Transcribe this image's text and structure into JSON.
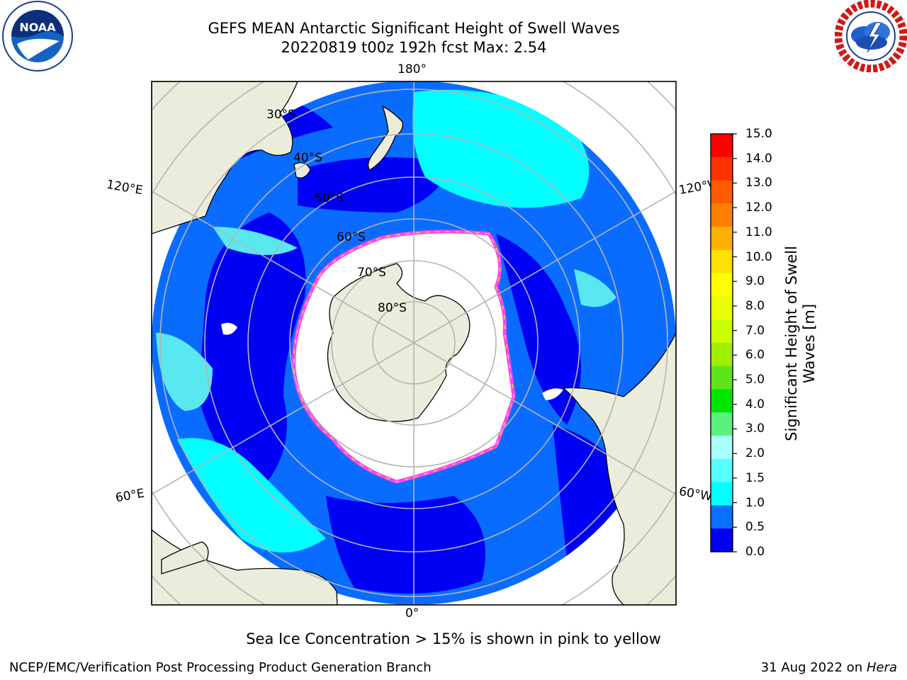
{
  "title": {
    "line1": "GEFS MEAN Antarctic Significant Height of Swell Waves",
    "line2": "20220819 t00z 192h fcst   Max: 2.54"
  },
  "map": {
    "projection": "south-polar-stereographic",
    "longitude_labels": {
      "top": "180°",
      "bottom": "0°",
      "upper_left": "120°E",
      "upper_right": "120°W",
      "lower_left": "60°E",
      "lower_right": "60°W"
    },
    "latitude_labels": [
      "30°S",
      "40°S",
      "50°S",
      "60°S",
      "70°S",
      "80°S"
    ],
    "colors": {
      "land": "#ececdc",
      "ocean_low": "#0000f5",
      "ocean_mid": "#0a6cff",
      "ocean_high": "#00ffff",
      "ocean_light": "#5ae8f0",
      "sea_ice": "#ffffff",
      "ice_edge_pink": "#ff44ee",
      "ice_edge_yellow": "#ffcc33",
      "gridline": "#b4b4b4"
    }
  },
  "colorbar": {
    "label": "Significant Height of Swell Waves [m]",
    "label_line1": "Significant Height of Swell",
    "label_line2": "Waves [m]",
    "ticks": [
      "15.0",
      "14.0",
      "13.0",
      "12.0",
      "11.0",
      "10.0",
      "9.0",
      "8.0",
      "7.0",
      "6.0",
      "5.0",
      "4.0",
      "3.0",
      "2.0",
      "1.5",
      "1.0",
      "0.5",
      "0.0"
    ],
    "colors_top_to_bottom": [
      "#ff0000",
      "#ff3300",
      "#ff5c00",
      "#ff8000",
      "#ffb000",
      "#ffe000",
      "#ffff00",
      "#eaff00",
      "#ccff00",
      "#a0ee00",
      "#5ce61a",
      "#00e600",
      "#5cf080",
      "#aaffff",
      "#55ffff",
      "#00ffff",
      "#0a70ff",
      "#0000f0"
    ]
  },
  "footnote": "Sea Ice Concentration > 15% is shown in pink to yellow",
  "credit_left": "NCEP/EMC/Verification Post Processing Product Generation Branch",
  "credit_right_date": "31 Aug 2022 on ",
  "credit_right_host": "Hera"
}
